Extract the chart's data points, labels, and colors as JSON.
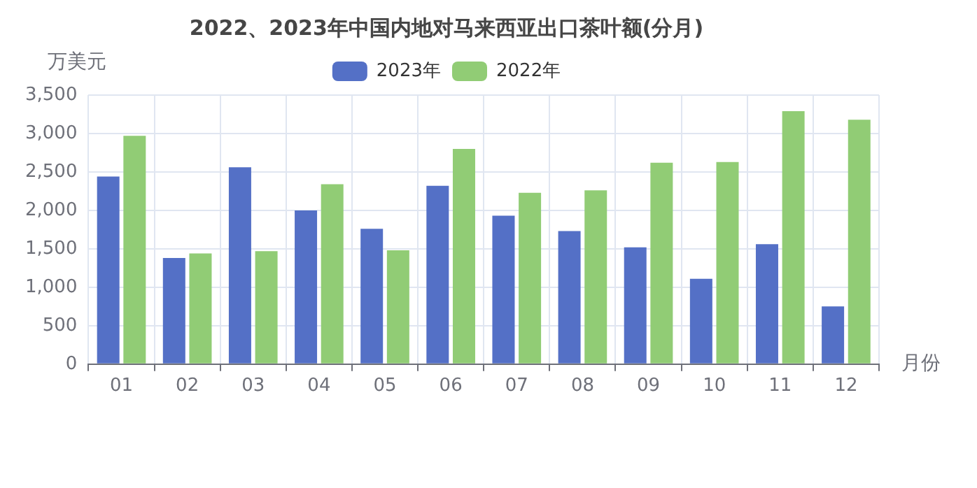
{
  "chart_data": {
    "type": "bar",
    "title": "2022、2023年中国内地对马来西亚出口茶叶额(分月)",
    "xlabel": "月份",
    "ylabel": "万美元",
    "categories": [
      "01",
      "02",
      "03",
      "04",
      "05",
      "06",
      "07",
      "08",
      "09",
      "10",
      "11",
      "12"
    ],
    "series": [
      {
        "name": "2023年",
        "color": "#5470c6",
        "values": [
          2440,
          1380,
          2560,
          2000,
          1760,
          2320,
          1930,
          1730,
          1520,
          1110,
          1560,
          750
        ]
      },
      {
        "name": "2022年",
        "color": "#91cc75",
        "values": [
          2970,
          1440,
          1470,
          2340,
          1480,
          2800,
          2230,
          2260,
          2620,
          2630,
          3290,
          3180
        ]
      }
    ],
    "ylim": [
      0,
      3500
    ],
    "yticks": [
      0,
      500,
      {
        "value": 1000,
        "label": "1,000"
      },
      {
        "value": 1500,
        "label": "1,500"
      },
      {
        "value": 2000,
        "label": "2,000"
      },
      {
        "value": 2500,
        "label": "2,500"
      },
      {
        "value": 3000,
        "label": "3,000"
      },
      {
        "value": 3500,
        "label": "3,500"
      }
    ],
    "grid": true,
    "legend": "top"
  }
}
